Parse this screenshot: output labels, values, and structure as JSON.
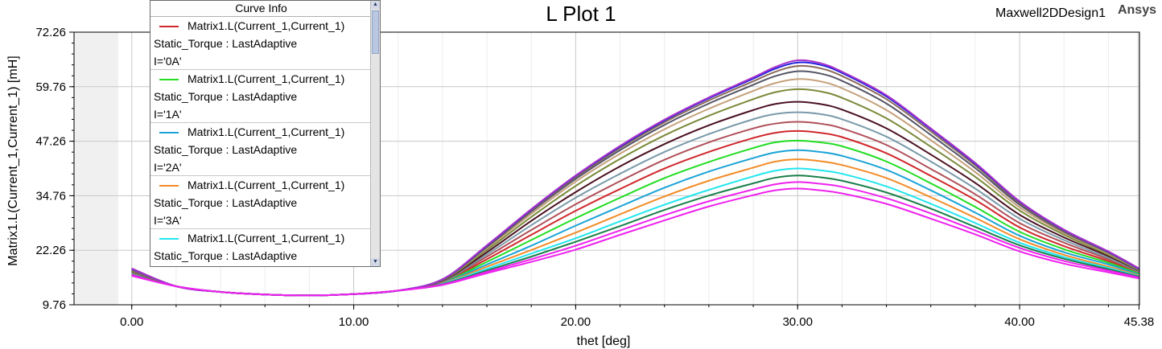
{
  "header": {
    "title": "L Plot 1",
    "design_name": "Maxwell2DDesign1",
    "brand": "Ansys"
  },
  "legend": {
    "header": "Curve Info",
    "entries": [
      {
        "expr": "Matrix1.L(Current_1,Current_1)",
        "setup": "Static_Torque : LastAdaptive",
        "param": "I='0A'",
        "color": "#d0282c"
      },
      {
        "expr": "Matrix1.L(Current_1,Current_1)",
        "setup": "Static_Torque : LastAdaptive",
        "param": "I='1A'",
        "color": "#22dd22"
      },
      {
        "expr": "Matrix1.L(Current_1,Current_1)",
        "setup": "Static_Torque : LastAdaptive",
        "param": "I='2A'",
        "color": "#1aa3d6"
      },
      {
        "expr": "Matrix1.L(Current_1,Current_1)",
        "setup": "Static_Torque : LastAdaptive",
        "param": "I='3A'",
        "color": "#f28c28"
      },
      {
        "expr": "Matrix1.L(Current_1,Current_1)",
        "setup": "Static_Torque : LastAdaptive",
        "param": "",
        "color": "#22e6ee"
      }
    ],
    "scroll_up_icon": "chevron-up-icon",
    "scroll_down_icon": "chevron-down-icon"
  },
  "chart_data": {
    "type": "line",
    "title": "L Plot 1",
    "xlabel": "thet [deg]",
    "ylabel": "Matrix1.L(Current_1,Current_1) [mH]",
    "xlim": [
      -2.6,
      45.4
    ],
    "ylim": [
      9.76,
      72.26
    ],
    "x_ticks": [
      0.0,
      10.0,
      20.0,
      30.0,
      40.0,
      45.38
    ],
    "x_tick_labels": [
      "0.00",
      "10.00",
      "20.00",
      "30.00",
      "40.00",
      "45.38"
    ],
    "y_ticks": [
      9.76,
      22.26,
      34.76,
      47.26,
      59.76,
      72.26
    ],
    "y_tick_labels": [
      "9.76",
      "22.26",
      "34.76",
      "47.26",
      "59.76",
      "72.26"
    ],
    "grid": true,
    "legend_position": "top-left",
    "x": [
      0.0,
      2.0,
      4.0,
      6.0,
      8.0,
      10.0,
      12.0,
      14.0,
      16.0,
      18.0,
      20.0,
      22.0,
      24.0,
      26.0,
      28.0,
      29.0,
      30.0,
      31.0,
      32.0,
      34.0,
      36.0,
      38.0,
      40.0,
      42.0,
      44.0,
      45.38
    ],
    "series": [
      {
        "name": "I='0A'",
        "color": "#d0282c",
        "values": [
          17.2,
          14.0,
          12.7,
          12.1,
          11.9,
          12.2,
          13.0,
          15.0,
          20.2,
          25.8,
          31.3,
          36.3,
          41.0,
          44.8,
          48.0,
          49.2,
          49.6,
          49.2,
          48.2,
          44.5,
          39.3,
          33.8,
          27.5,
          23.2,
          19.8,
          17.1
        ]
      },
      {
        "name": "I='1A'",
        "color": "#22dd22",
        "values": [
          17.1,
          14.0,
          12.7,
          12.1,
          11.9,
          12.2,
          13.0,
          14.9,
          19.6,
          24.6,
          29.6,
          34.3,
          38.8,
          42.5,
          45.7,
          47.0,
          47.4,
          47.0,
          46.1,
          42.6,
          37.6,
          32.2,
          26.5,
          22.5,
          19.4,
          16.9
        ]
      },
      {
        "name": "I='2A'",
        "color": "#1aa3d6",
        "values": [
          17.0,
          14.0,
          12.7,
          12.1,
          11.9,
          12.2,
          13.0,
          14.8,
          19.0,
          23.3,
          27.9,
          32.3,
          36.6,
          40.3,
          43.4,
          44.7,
          45.2,
          44.8,
          43.9,
          40.7,
          36.0,
          30.9,
          25.6,
          21.8,
          19.0,
          16.7
        ]
      },
      {
        "name": "I='3A'",
        "color": "#f28c28",
        "values": [
          16.9,
          14.0,
          12.7,
          12.1,
          11.9,
          12.2,
          13.0,
          14.7,
          18.5,
          22.3,
          26.3,
          30.5,
          34.6,
          38.2,
          41.2,
          42.6,
          43.1,
          42.7,
          41.8,
          38.8,
          34.4,
          29.7,
          24.8,
          21.2,
          18.5,
          16.5
        ]
      },
      {
        "name": "",
        "color": "#22e6ee",
        "values": [
          16.8,
          14.0,
          12.7,
          12.1,
          11.9,
          12.2,
          13.0,
          14.6,
          18.0,
          21.5,
          25.0,
          28.9,
          32.7,
          36.1,
          39.2,
          40.5,
          41.0,
          40.6,
          39.8,
          36.9,
          32.9,
          28.5,
          24.0,
          20.7,
          18.2,
          16.3
        ]
      },
      {
        "name": "",
        "color": "#1a7f4a",
        "values": [
          16.7,
          14.0,
          12.7,
          12.1,
          11.9,
          12.2,
          13.0,
          14.5,
          17.6,
          20.8,
          24.2,
          27.8,
          31.5,
          34.8,
          37.6,
          38.9,
          39.4,
          39.0,
          38.2,
          35.5,
          31.8,
          27.6,
          23.4,
          20.3,
          17.9,
          16.2
        ]
      },
      {
        "name": "",
        "color": "#ee22ee",
        "values": [
          16.6,
          14.0,
          12.7,
          12.1,
          11.9,
          12.2,
          13.0,
          14.4,
          17.3,
          20.2,
          23.3,
          26.8,
          30.3,
          33.5,
          36.2,
          37.4,
          37.9,
          37.5,
          36.8,
          34.2,
          30.7,
          26.8,
          22.8,
          19.8,
          17.6,
          16.0
        ]
      },
      {
        "name": "",
        "color": "#b0505a",
        "values": [
          17.3,
          14.0,
          12.7,
          12.1,
          11.9,
          12.2,
          13.0,
          15.1,
          20.8,
          26.9,
          32.8,
          38.1,
          43.0,
          47.0,
          50.2,
          51.3,
          51.7,
          51.3,
          50.2,
          46.4,
          40.9,
          35.1,
          28.5,
          24.0,
          20.2,
          17.3
        ]
      },
      {
        "name": "",
        "color": "#7a9aaa",
        "values": [
          17.4,
          14.0,
          12.7,
          12.1,
          11.9,
          12.2,
          13.0,
          15.2,
          21.3,
          28.0,
          34.3,
          39.8,
          44.8,
          48.9,
          52.3,
          53.5,
          53.9,
          53.5,
          52.3,
          48.3,
          42.6,
          36.4,
          29.5,
          24.6,
          20.5,
          17.4
        ]
      },
      {
        "name": "",
        "color": "#4a1020",
        "values": [
          17.5,
          14.0,
          12.7,
          12.1,
          11.9,
          12.2,
          13.0,
          15.3,
          21.8,
          29.0,
          35.6,
          41.5,
          46.6,
          50.9,
          54.4,
          55.8,
          56.3,
          55.8,
          54.5,
          50.2,
          44.2,
          37.7,
          30.4,
          25.2,
          20.9,
          17.6
        ]
      },
      {
        "name": "",
        "color": "#7a8a3a",
        "values": [
          17.6,
          14.0,
          12.7,
          12.1,
          11.9,
          12.2,
          13.0,
          15.4,
          22.3,
          29.9,
          37.0,
          43.2,
          48.6,
          53.1,
          56.9,
          58.5,
          59.2,
          58.7,
          57.2,
          52.5,
          46.0,
          39.1,
          31.4,
          25.8,
          21.2,
          17.7
        ]
      },
      {
        "name": "",
        "color": "#c4a07a",
        "values": [
          17.7,
          14.0,
          12.7,
          12.1,
          11.9,
          12.2,
          13.0,
          15.5,
          22.7,
          30.6,
          38.0,
          44.4,
          50.0,
          54.7,
          58.8,
          60.6,
          61.5,
          61.0,
          59.4,
          54.4,
          47.5,
          40.2,
          32.1,
          26.2,
          21.5,
          17.8
        ]
      },
      {
        "name": "",
        "color": "#555566",
        "values": [
          17.8,
          14.0,
          12.7,
          12.1,
          11.9,
          12.2,
          13.0,
          15.5,
          23.0,
          31.1,
          38.6,
          45.2,
          51.0,
          55.9,
          60.2,
          62.2,
          63.3,
          62.8,
          61.1,
          55.9,
          48.7,
          41.1,
          32.7,
          26.5,
          21.7,
          17.9
        ]
      },
      {
        "name": "",
        "color": "#8a6a5a",
        "values": [
          17.9,
          14.0,
          12.7,
          12.1,
          11.9,
          12.2,
          13.0,
          15.6,
          23.2,
          31.4,
          39.0,
          45.7,
          51.6,
          56.6,
          61.0,
          63.2,
          64.5,
          64.0,
          62.2,
          56.9,
          49.5,
          41.7,
          33.1,
          26.7,
          21.8,
          18.0
        ]
      },
      {
        "name": "",
        "color": "#2222dd",
        "values": [
          18.0,
          14.0,
          12.7,
          12.1,
          11.9,
          12.2,
          13.0,
          15.6,
          23.3,
          31.6,
          39.3,
          46.0,
          52.0,
          57.1,
          61.6,
          63.9,
          65.3,
          64.8,
          62.9,
          57.5,
          50.0,
          42.1,
          33.4,
          26.9,
          21.9,
          18.0
        ]
      },
      {
        "name": "",
        "color": "#aa33cc",
        "values": [
          18.1,
          14.0,
          12.7,
          12.1,
          11.9,
          12.2,
          13.0,
          15.6,
          23.4,
          31.7,
          39.4,
          46.2,
          52.2,
          57.3,
          61.9,
          64.3,
          65.8,
          65.2,
          63.2,
          57.8,
          50.2,
          42.3,
          33.5,
          27.0,
          22.0,
          18.1
        ]
      },
      {
        "name": "",
        "color": "#ee22ee",
        "values": [
          16.4,
          14.0,
          12.7,
          12.1,
          11.9,
          12.2,
          13.0,
          14.3,
          17.0,
          19.6,
          22.4,
          25.8,
          29.1,
          32.3,
          34.9,
          36.0,
          36.4,
          36.0,
          35.3,
          32.9,
          29.5,
          25.9,
          22.0,
          19.2,
          17.2,
          15.8
        ]
      }
    ]
  }
}
